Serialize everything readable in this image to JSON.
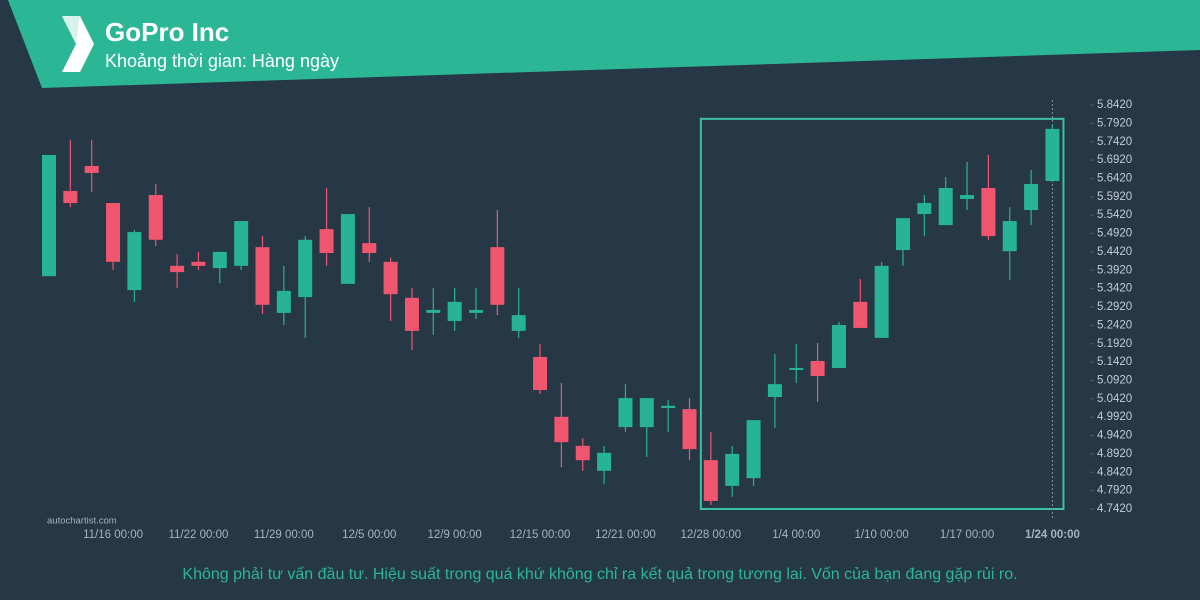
{
  "chart_data": {
    "type": "candlestick",
    "title": "GoPro Inc",
    "subtitle": "Khoảng thời gian: Hàng ngày",
    "watermark": "autochartist.com",
    "disclaimer": "Không phải tư vấn đầu tư. Hiệu suất trong quá khứ không chỉ ra kết quả trong tương lai. Vốn của bạn đang gặp rủi ro.",
    "categories": [
      null,
      null,
      null,
      "11/16 00:00",
      null,
      null,
      null,
      "11/22 00:00",
      null,
      null,
      null,
      "11/29 00:00",
      null,
      null,
      null,
      "12/5 00:00",
      null,
      null,
      null,
      "12/9 00:00",
      null,
      null,
      null,
      "12/15 00:00",
      null,
      null,
      null,
      "12/21 00:00",
      null,
      null,
      null,
      "12/28 00:00",
      null,
      null,
      null,
      "1/4 00:00",
      null,
      null,
      null,
      "1/10 00:00",
      null,
      null,
      null,
      "1/17 00:00",
      null,
      null,
      null,
      "1/24 00:00"
    ],
    "open": [
      5.376,
      5.608,
      5.676,
      5.575,
      5.338,
      5.597,
      5.404,
      5.415,
      5.398,
      5.404,
      5.455,
      5.276,
      5.319,
      5.504,
      5.355,
      5.466,
      5.415,
      5.317,
      5.276,
      5.254,
      5.276,
      5.455,
      5.227,
      5.156,
      4.993,
      4.914,
      4.846,
      4.965,
      4.965,
      5.017,
      5.014,
      4.875,
      4.805,
      4.826,
      5.047,
      5.123,
      5.145,
      5.126,
      5.306,
      5.208,
      5.447,
      5.545,
      5.515,
      5.586,
      5.616,
      5.444,
      5.556,
      5.635
    ],
    "high": [
      5.706,
      5.747,
      5.747,
      5.575,
      5.502,
      5.627,
      5.436,
      5.442,
      5.442,
      5.526,
      5.485,
      5.404,
      5.485,
      5.616,
      5.545,
      5.564,
      5.426,
      5.344,
      5.344,
      5.344,
      5.344,
      5.556,
      5.344,
      5.191,
      5.085,
      4.935,
      4.914,
      5.082,
      5.044,
      5.039,
      5.044,
      4.952,
      4.914,
      4.984,
      5.164,
      5.191,
      5.194,
      5.251,
      5.368,
      5.415,
      5.534,
      5.597,
      5.646,
      5.687,
      5.706,
      5.564,
      5.665,
      5.788
    ],
    "low": [
      5.376,
      5.564,
      5.605,
      5.393,
      5.306,
      5.458,
      5.344,
      5.393,
      5.357,
      5.393,
      5.273,
      5.243,
      5.208,
      5.404,
      5.355,
      5.415,
      5.254,
      5.175,
      5.216,
      5.227,
      5.259,
      5.27,
      5.208,
      5.055,
      4.856,
      4.846,
      4.81,
      4.952,
      4.884,
      4.952,
      4.875,
      4.753,
      4.775,
      4.805,
      4.963,
      5.085,
      5.033,
      5.126,
      5.235,
      5.208,
      5.404,
      5.485,
      5.515,
      5.556,
      5.475,
      5.366,
      5.515,
      5.635
    ],
    "close": [
      5.706,
      5.575,
      5.657,
      5.415,
      5.496,
      5.475,
      5.387,
      5.404,
      5.442,
      5.526,
      5.298,
      5.336,
      5.475,
      5.439,
      5.545,
      5.439,
      5.327,
      5.227,
      5.284,
      5.306,
      5.284,
      5.298,
      5.27,
      5.066,
      4.924,
      4.875,
      4.895,
      5.044,
      5.044,
      5.023,
      4.905,
      4.764,
      4.892,
      4.984,
      5.082,
      5.126,
      5.104,
      5.243,
      5.235,
      5.404,
      5.534,
      5.575,
      5.616,
      5.597,
      5.485,
      5.526,
      5.627,
      5.777
    ],
    "up_color": "#26b396",
    "down_color": "#f0566e",
    "pattern_color": "#3cc2a3",
    "ylim": [
      4.742,
      5.842
    ],
    "yticks": [
      {
        "value": 4.742,
        "label": "4.7420"
      },
      {
        "value": 4.792,
        "label": "4.7920"
      },
      {
        "value": 4.842,
        "label": "4.8420"
      },
      {
        "value": 4.892,
        "label": "4.8920"
      },
      {
        "value": 4.942,
        "label": "4.9420"
      },
      {
        "value": 4.992,
        "label": "4.9920"
      },
      {
        "value": 5.042,
        "label": "5.0420"
      },
      {
        "value": 5.092,
        "label": "5.0920"
      },
      {
        "value": 5.142,
        "label": "5.1420"
      },
      {
        "value": 5.192,
        "label": "5.1920"
      },
      {
        "value": 5.242,
        "label": "5.2420"
      },
      {
        "value": 5.292,
        "label": "5.2920"
      },
      {
        "value": 5.342,
        "label": "5.3420"
      },
      {
        "value": 5.392,
        "label": "5.3920"
      },
      {
        "value": 5.442,
        "label": "5.4420"
      },
      {
        "value": 5.492,
        "label": "5.4920"
      },
      {
        "value": 5.542,
        "label": "5.5420"
      },
      {
        "value": 5.592,
        "label": "5.5920"
      },
      {
        "value": 5.642,
        "label": "5.6420"
      },
      {
        "value": 5.692,
        "label": "5.6920"
      },
      {
        "value": 5.742,
        "label": "5.7420"
      },
      {
        "value": 5.792,
        "label": "5.7920"
      },
      {
        "value": 5.842,
        "label": "5.8420"
      }
    ],
    "grid": false
  }
}
